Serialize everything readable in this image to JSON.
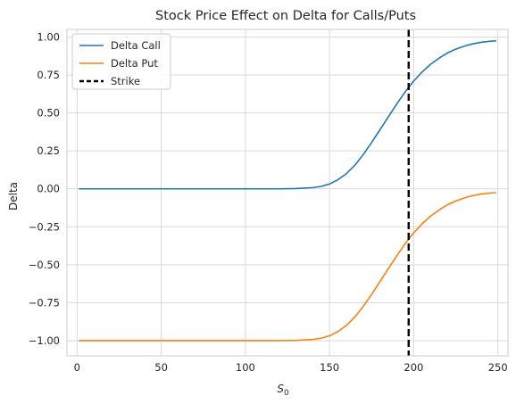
{
  "chart_data": {
    "type": "line",
    "title": "Stock Price Effect on Delta for Calls/Puts",
    "xlabel": "S",
    "xlabel_subscript": "0",
    "ylabel": "Delta",
    "xlim": [
      -6,
      256
    ],
    "ylim": [
      -1.1,
      1.05
    ],
    "x_ticks": [
      0,
      50,
      100,
      150,
      200,
      250
    ],
    "y_ticks": [
      1.0,
      0.75,
      0.5,
      0.25,
      0.0,
      -0.25,
      -0.5,
      -0.75,
      -1.0
    ],
    "y_tick_labels": [
      "1.00",
      "0.75",
      "0.50",
      "0.25",
      "0.00",
      "−0.25",
      "−0.50",
      "−0.75",
      "−1.00"
    ],
    "grid": true,
    "legend": "top-left",
    "x": [
      1,
      25,
      50,
      75,
      100,
      110,
      120,
      130,
      140,
      145,
      150,
      155,
      160,
      165,
      170,
      175,
      180,
      185,
      190,
      195,
      200,
      205,
      210,
      215,
      220,
      225,
      230,
      235,
      240,
      245,
      249
    ],
    "series": [
      {
        "name": "Delta Call",
        "color": "#1f77b4",
        "values": [
          0.0,
          0.0,
          0.0,
          0.0,
          0.0,
          0.0,
          0.0,
          0.002,
          0.008,
          0.016,
          0.032,
          0.06,
          0.1,
          0.155,
          0.225,
          0.305,
          0.39,
          0.475,
          0.56,
          0.64,
          0.71,
          0.77,
          0.82,
          0.86,
          0.895,
          0.92,
          0.94,
          0.955,
          0.965,
          0.972,
          0.975
        ]
      },
      {
        "name": "Delta Put",
        "color": "#ff7f0e",
        "values": [
          -1.0,
          -1.0,
          -1.0,
          -1.0,
          -1.0,
          -1.0,
          -1.0,
          -0.998,
          -0.992,
          -0.984,
          -0.968,
          -0.94,
          -0.9,
          -0.845,
          -0.775,
          -0.695,
          -0.61,
          -0.525,
          -0.44,
          -0.36,
          -0.29,
          -0.23,
          -0.18,
          -0.14,
          -0.105,
          -0.08,
          -0.06,
          -0.045,
          -0.035,
          -0.028,
          -0.025
        ]
      }
    ],
    "strike": {
      "name": "Strike",
      "x": 197,
      "color": "#000000"
    }
  }
}
